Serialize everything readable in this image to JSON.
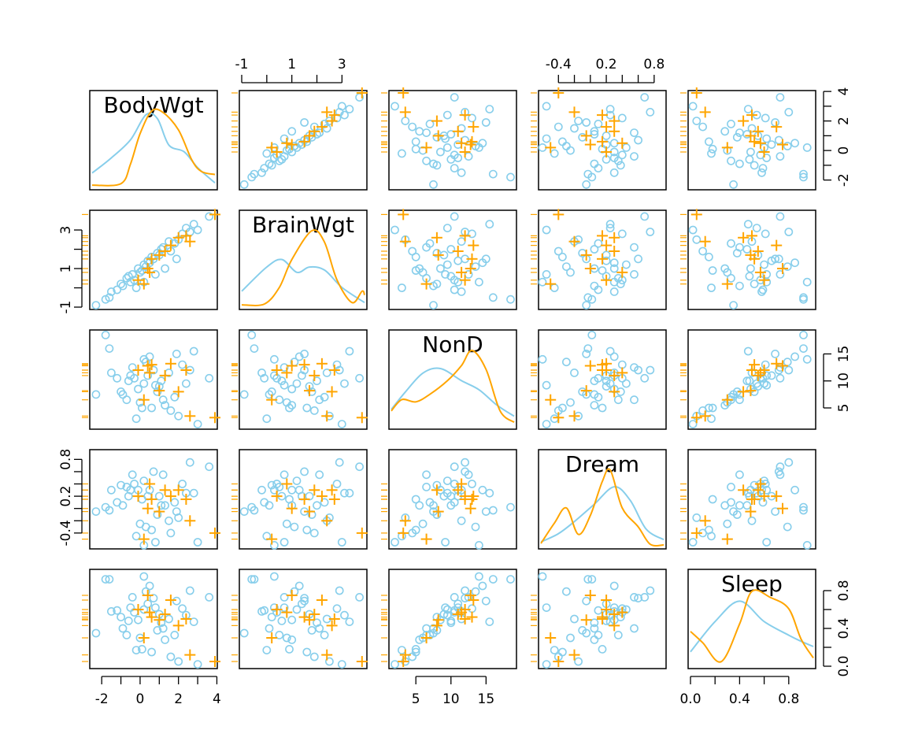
{
  "chart_data": {
    "type": "scatter",
    "subtype": "scatterplot-matrix",
    "variables": [
      "BodyWgt",
      "BrainWgt",
      "NonD",
      "Dream",
      "Sleep"
    ],
    "axis_ranges": {
      "BodyWgt": [
        -2.5,
        3.9
      ],
      "BrainWgt": [
        -1.0,
        3.9
      ],
      "NonD": [
        1.5,
        19.0
      ],
      "Dream": [
        -0.62,
        0.92
      ],
      "Sleep": [
        0.0,
        1.0
      ]
    },
    "tick_labels": {
      "BodyWgt": {
        "labels": [
          "-2",
          "0",
          "2",
          "4"
        ],
        "values": [
          -2,
          0,
          2,
          4
        ],
        "minor": [
          -1,
          1,
          3
        ]
      },
      "BrainWgt": {
        "labels": [
          "-1",
          "1",
          "3"
        ],
        "values": [
          -1,
          1,
          3
        ],
        "minor": [
          0,
          2
        ]
      },
      "NonD": {
        "labels": [
          "5",
          "10",
          "15"
        ],
        "values": [
          5,
          10,
          15
        ],
        "minor": []
      },
      "Dream": {
        "labels": [
          "-0.4",
          "0.2",
          "0.8"
        ],
        "values": [
          -0.4,
          0.2,
          0.8
        ],
        "minor": [
          -0.2,
          0.0,
          0.4,
          0.6
        ]
      },
      "Sleep": {
        "labels": [
          "0.0",
          "0.4",
          "0.8"
        ],
        "values": [
          0.0,
          0.4,
          0.8
        ],
        "minor": [
          0.2,
          0.6
        ]
      }
    },
    "axis_sides": {
      "top": [
        1,
        3
      ],
      "bottom": [
        0,
        2,
        4
      ],
      "left": [
        1,
        3
      ],
      "right": [
        0,
        2,
        4
      ]
    },
    "grid": false,
    "legend": "none",
    "series": [
      {
        "marker": "circle",
        "color": "#87CEEB",
        "points": [
          [
            -2.3,
            -0.9,
            7.5,
            -0.05,
            0.35
          ],
          [
            -1.8,
            -0.6,
            18.5,
            0.02,
            0.92
          ],
          [
            -1.6,
            -0.5,
            16.0,
            -0.03,
            0.92
          ],
          [
            -1.5,
            -0.2,
            11.5,
            0.3,
            0.58
          ],
          [
            -1.2,
            -0.1,
            10.5,
            0.1,
            0.59
          ],
          [
            -1.0,
            0.2,
            8.0,
            0.38,
            0.52
          ],
          [
            -0.9,
            0.1,
            7.5,
            0.05,
            0.4
          ],
          [
            -0.7,
            0.5,
            6.5,
            0.35,
            0.33
          ],
          [
            -0.6,
            0.6,
            10.0,
            0.2,
            0.48
          ],
          [
            -0.5,
            0.3,
            11.0,
            0.3,
            0.62
          ],
          [
            -0.4,
            0.7,
            12.5,
            0.55,
            0.73
          ],
          [
            -0.3,
            0.4,
            10.5,
            0.4,
            0.57
          ],
          [
            -0.1,
            1.0,
            8.5,
            0.3,
            0.49
          ],
          [
            0.0,
            0.8,
            6.0,
            -0.25,
            0.3
          ],
          [
            0.1,
            0.9,
            5.0,
            0.15,
            0.18
          ],
          [
            0.2,
            1.2,
            9.5,
            0.45,
            0.6
          ],
          [
            0.3,
            1.1,
            13.5,
            -0.3,
            0.79
          ],
          [
            0.4,
            1.4,
            11.0,
            0.2,
            0.66
          ],
          [
            0.5,
            1.3,
            14.5,
            0.3,
            0.85
          ],
          [
            0.6,
            1.6,
            5.0,
            -0.35,
            0.15
          ],
          [
            0.7,
            1.5,
            12.0,
            0.6,
            0.72
          ],
          [
            0.9,
            1.8,
            8.0,
            -0.1,
            0.38
          ],
          [
            1.0,
            1.7,
            9.0,
            0.2,
            0.55
          ],
          [
            1.1,
            2.0,
            10.0,
            0.05,
            0.46
          ],
          [
            1.2,
            2.1,
            6.5,
            0.55,
            0.4
          ],
          [
            1.5,
            2.4,
            11.5,
            -0.2,
            0.5
          ],
          [
            1.6,
            1.9,
            4.5,
            -0.4,
            0.1
          ],
          [
            1.8,
            2.3,
            7.0,
            0.1,
            0.33
          ],
          [
            2.0,
            2.5,
            3.5,
            -0.15,
            0.05
          ],
          [
            2.2,
            2.8,
            13.0,
            0.4,
            0.61
          ],
          [
            2.4,
            3.1,
            9.5,
            0.25,
            0.54
          ],
          [
            2.6,
            2.9,
            12.0,
            0.75,
            0.8
          ],
          [
            2.8,
            3.3,
            15.5,
            0.25,
            0.47
          ],
          [
            3.0,
            3.0,
            2.0,
            -0.55,
            0.02
          ],
          [
            3.6,
            3.7,
            10.5,
            0.68,
            0.73
          ],
          [
            0.8,
            0.7,
            9.2,
            -0.55,
            0.62
          ],
          [
            -0.2,
            0.0,
            3.0,
            -0.45,
            0.17
          ],
          [
            1.3,
            1.0,
            5.5,
            0.05,
            0.28
          ],
          [
            0.2,
            0.3,
            14.0,
            -0.6,
            0.95
          ],
          [
            1.9,
            1.5,
            15.0,
            -0.05,
            0.69
          ]
        ]
      },
      {
        "marker": "plus",
        "color": "#FFA500",
        "points": [
          [
            -0.1,
            0.4,
            12.0,
            0.2,
            0.6
          ],
          [
            0.4,
            1.0,
            12.8,
            0.0,
            0.75
          ],
          [
            0.5,
            0.8,
            11.5,
            0.4,
            0.57
          ],
          [
            0.6,
            1.5,
            13.0,
            0.15,
            0.52
          ],
          [
            1.0,
            1.7,
            8.2,
            -0.05,
            0.49
          ],
          [
            1.3,
            1.9,
            11.0,
            0.3,
            0.55
          ],
          [
            1.6,
            2.2,
            13.2,
            0.2,
            0.7
          ],
          [
            2.0,
            2.6,
            8.0,
            0.3,
            0.43
          ],
          [
            2.4,
            2.7,
            12.0,
            0.15,
            0.5
          ],
          [
            3.9,
            3.8,
            3.2,
            -0.4,
            0.05
          ],
          [
            0.2,
            0.2,
            6.5,
            -0.5,
            0.3
          ],
          [
            2.6,
            2.4,
            3.5,
            -0.2,
            0.12
          ]
        ]
      }
    ],
    "diagonal_density": {
      "BodyWgt": {
        "circle": [
          [
            -2.5,
            0.18
          ],
          [
            -1.5,
            0.38
          ],
          [
            -0.5,
            0.62
          ],
          [
            0.3,
            0.95
          ],
          [
            0.9,
            0.9
          ],
          [
            1.5,
            0.55
          ],
          [
            2.3,
            0.46
          ],
          [
            3.0,
            0.25
          ],
          [
            3.9,
            0.05
          ]
        ],
        "plus": [
          [
            -2.5,
            0.02
          ],
          [
            -1.0,
            0.04
          ],
          [
            -0.5,
            0.3
          ],
          [
            0.0,
            0.7
          ],
          [
            0.6,
            1.0
          ],
          [
            1.2,
            0.98
          ],
          [
            2.0,
            0.75
          ],
          [
            2.7,
            0.35
          ],
          [
            3.2,
            0.2
          ],
          [
            3.9,
            0.16
          ]
        ]
      },
      "BrainWgt": {
        "circle": [
          [
            -1.0,
            0.2
          ],
          [
            0.0,
            0.52
          ],
          [
            0.6,
            0.62
          ],
          [
            1.2,
            0.45
          ],
          [
            1.7,
            0.52
          ],
          [
            2.3,
            0.48
          ],
          [
            3.0,
            0.25
          ],
          [
            3.9,
            0.05
          ]
        ],
        "plus": [
          [
            -1.0,
            0.02
          ],
          [
            -0.1,
            0.03
          ],
          [
            0.5,
            0.25
          ],
          [
            1.0,
            0.62
          ],
          [
            1.8,
            1.0
          ],
          [
            2.3,
            0.85
          ],
          [
            2.8,
            0.35
          ],
          [
            3.4,
            0.05
          ],
          [
            3.8,
            0.2
          ],
          [
            3.9,
            0.15
          ]
        ]
      },
      "NonD": {
        "circle": [
          [
            1.5,
            0.22
          ],
          [
            3.5,
            0.45
          ],
          [
            6.0,
            0.7
          ],
          [
            8.5,
            0.76
          ],
          [
            11.5,
            0.6
          ],
          [
            14.0,
            0.48
          ],
          [
            16.5,
            0.28
          ],
          [
            19.0,
            0.13
          ]
        ],
        "plus": [
          [
            1.5,
            0.2
          ],
          [
            3.0,
            0.35
          ],
          [
            5.0,
            0.32
          ],
          [
            7.0,
            0.42
          ],
          [
            9.5,
            0.6
          ],
          [
            11.5,
            0.8
          ],
          [
            13.0,
            1.0
          ],
          [
            15.0,
            0.75
          ],
          [
            17.0,
            0.2
          ],
          [
            19.0,
            0.05
          ]
        ]
      },
      "Dream": {
        "circle": [
          [
            -0.62,
            0.05
          ],
          [
            -0.4,
            0.16
          ],
          [
            -0.2,
            0.32
          ],
          [
            0.05,
            0.55
          ],
          [
            0.3,
            0.78
          ],
          [
            0.5,
            0.6
          ],
          [
            0.7,
            0.22
          ],
          [
            0.92,
            0.08
          ]
        ],
        "plus": [
          [
            -0.62,
            0.03
          ],
          [
            -0.45,
            0.3
          ],
          [
            -0.3,
            0.5
          ],
          [
            -0.15,
            0.15
          ],
          [
            0.0,
            0.4
          ],
          [
            0.15,
            0.85
          ],
          [
            0.25,
            1.0
          ],
          [
            0.4,
            0.5
          ],
          [
            0.6,
            0.25
          ],
          [
            0.75,
            0.02
          ],
          [
            0.92,
            0.01
          ]
        ]
      },
      "Sleep": {
        "circle": [
          [
            0.0,
            0.18
          ],
          [
            0.2,
            0.58
          ],
          [
            0.4,
            0.85
          ],
          [
            0.6,
            0.58
          ],
          [
            0.8,
            0.4
          ],
          [
            0.9,
            0.32
          ],
          [
            1.0,
            0.25
          ]
        ],
        "plus": [
          [
            0.0,
            0.45
          ],
          [
            0.1,
            0.3
          ],
          [
            0.25,
            0.05
          ],
          [
            0.4,
            0.55
          ],
          [
            0.5,
            0.98
          ],
          [
            0.65,
            0.9
          ],
          [
            0.8,
            0.75
          ],
          [
            0.9,
            0.35
          ],
          [
            1.0,
            0.1
          ]
        ]
      }
    }
  }
}
